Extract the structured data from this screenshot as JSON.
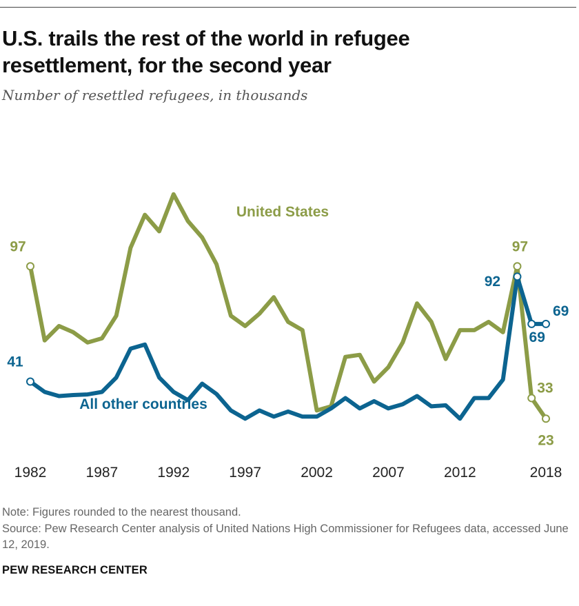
{
  "header": {
    "title": "U.S. trails the rest of the world in refugee resettlement, for the second year",
    "subtitle": "Number of resettled refugees, in thousands"
  },
  "footer": {
    "note": "Note: Figures rounded to the nearest thousand.",
    "source": "Source: Pew Research Center analysis of United Nations High Commissioner for Refugees data, accessed June 12, 2019.",
    "brand": "PEW RESEARCH CENTER"
  },
  "colors": {
    "us": "#8c9c47",
    "other": "#0c6490"
  },
  "chart_data": {
    "type": "line",
    "title": "U.S. trails the rest of the world in refugee resettlement, for the second year",
    "ylabel": "Number of resettled refugees, in thousands",
    "xlabel": "",
    "x": [
      1982,
      1983,
      1984,
      1985,
      1986,
      1987,
      1988,
      1989,
      1990,
      1991,
      1992,
      1993,
      1994,
      1995,
      1996,
      1997,
      1998,
      1999,
      2000,
      2001,
      2002,
      2003,
      2004,
      2005,
      2006,
      2007,
      2008,
      2009,
      2010,
      2011,
      2012,
      2013,
      2014,
      2015,
      2016,
      2017,
      2018
    ],
    "xticks": [
      "1982",
      "1987",
      "1992",
      "1997",
      "2002",
      "2007",
      "2012",
      "2018"
    ],
    "ylim": [
      0,
      150
    ],
    "grid": false,
    "series": [
      {
        "name": "United States",
        "label": "United States",
        "values": [
          97,
          61,
          68,
          65,
          60,
          62,
          73,
          106,
          122,
          114,
          132,
          119,
          111,
          98,
          73,
          68,
          74,
          82,
          70,
          66,
          27,
          29,
          53,
          54,
          41,
          48,
          60,
          79,
          70,
          52,
          66,
          66,
          70,
          65,
          97,
          33,
          23
        ]
      },
      {
        "name": "All other countries",
        "label": "All other countries",
        "values": [
          41,
          36,
          34,
          34.5,
          34.8,
          36,
          43,
          57,
          59,
          43,
          36,
          32,
          40,
          35,
          27,
          23,
          27,
          24,
          26.5,
          24,
          24,
          28,
          33,
          28,
          31.5,
          28,
          30,
          34,
          29,
          29.5,
          23,
          33,
          33,
          42,
          92,
          69,
          69
        ]
      }
    ],
    "annotations": [
      {
        "series": "United States",
        "year": 1982,
        "text": "97"
      },
      {
        "series": "United States",
        "year": 2016,
        "text": "97"
      },
      {
        "series": "United States",
        "year": 2017,
        "text": "33"
      },
      {
        "series": "United States",
        "year": 2018,
        "text": "23"
      },
      {
        "series": "All other countries",
        "year": 1982,
        "text": "41"
      },
      {
        "series": "All other countries",
        "year": 2016,
        "text": "92"
      },
      {
        "series": "All other countries",
        "year": 2017,
        "text": "69"
      },
      {
        "series": "All other countries",
        "year": 2018,
        "text": "69"
      }
    ]
  }
}
